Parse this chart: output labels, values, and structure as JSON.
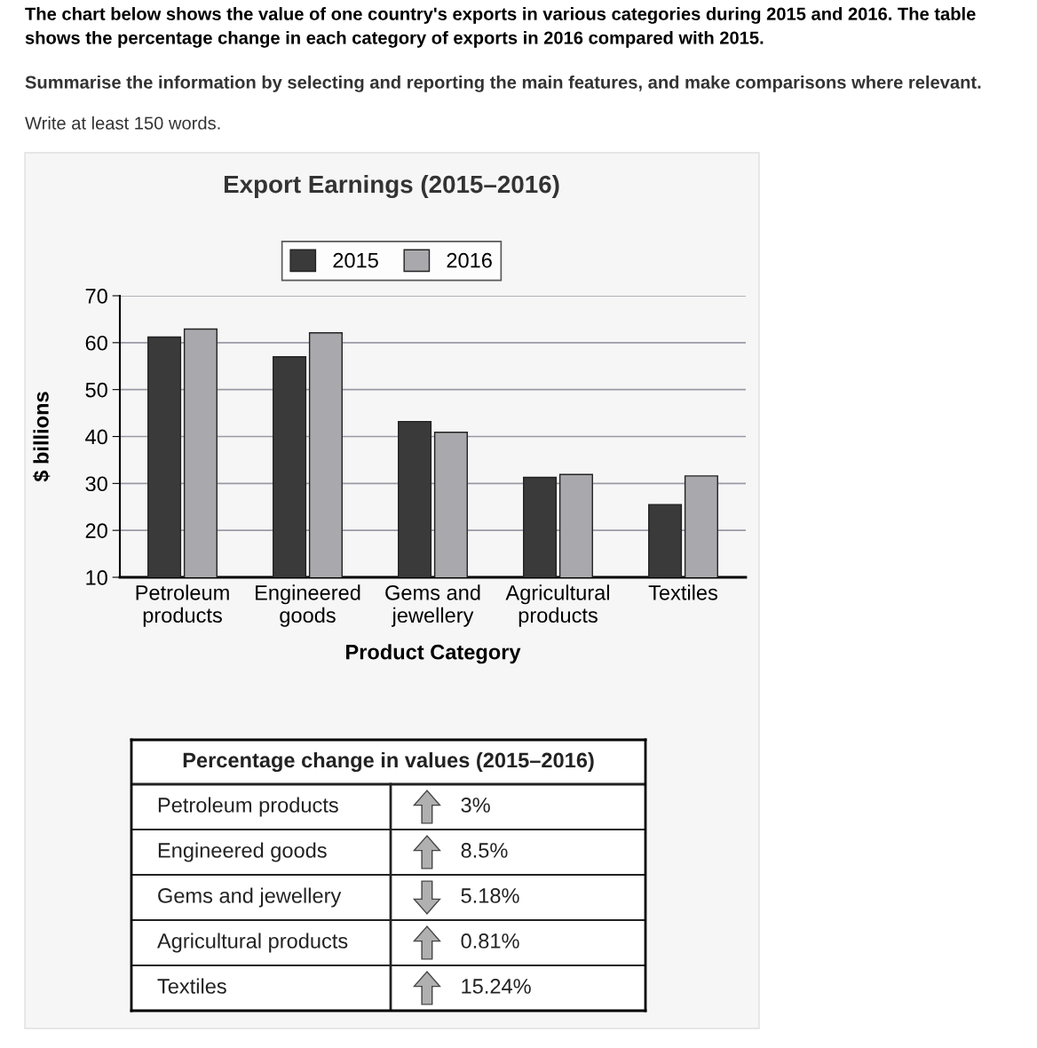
{
  "chart_data": [
    {
      "type": "bar",
      "title": "Export Earnings (2015–2016)",
      "xlabel": "Product Category",
      "ylabel": "$ billions",
      "annotations": [
        "The chart below shows the value of one country's exports in various categories during 2015 and 2016. The table shows the percentage change in each category of exports in 2016 compared with 2015.",
        "Summarise the information by selecting and reporting the main features, and make comparisons where relevant.",
        "Write at least 150 words."
      ],
      "categories": [
        "Petroleum products",
        "Engineered goods",
        "Gems and jewellery",
        "Agricultural products",
        "Textiles"
      ],
      "series": [
        {
          "name": "2015",
          "color": "#3a3a3a",
          "values": [
            61.2,
            57.0,
            43.2,
            31.3,
            25.5
          ]
        },
        {
          "name": "2016",
          "color": "#a9a9ad",
          "values": [
            62.9,
            62.1,
            40.9,
            31.9,
            31.6
          ]
        }
      ],
      "ylim": [
        10,
        70
      ],
      "yticks": [
        10,
        20,
        30,
        40,
        50,
        60,
        70
      ],
      "grid": "y",
      "legend": "top"
    },
    {
      "type": "other",
      "title": "Percentage change in values (2015–2016)",
      "annotations": [
        "Petroleum products",
        "3%",
        "Engineered goods",
        "8.5%",
        "Gems and jewellery",
        "5.18%",
        "Agricultural products",
        "0.81%",
        "Textiles",
        "15.24%"
      ]
    }
  ]
}
